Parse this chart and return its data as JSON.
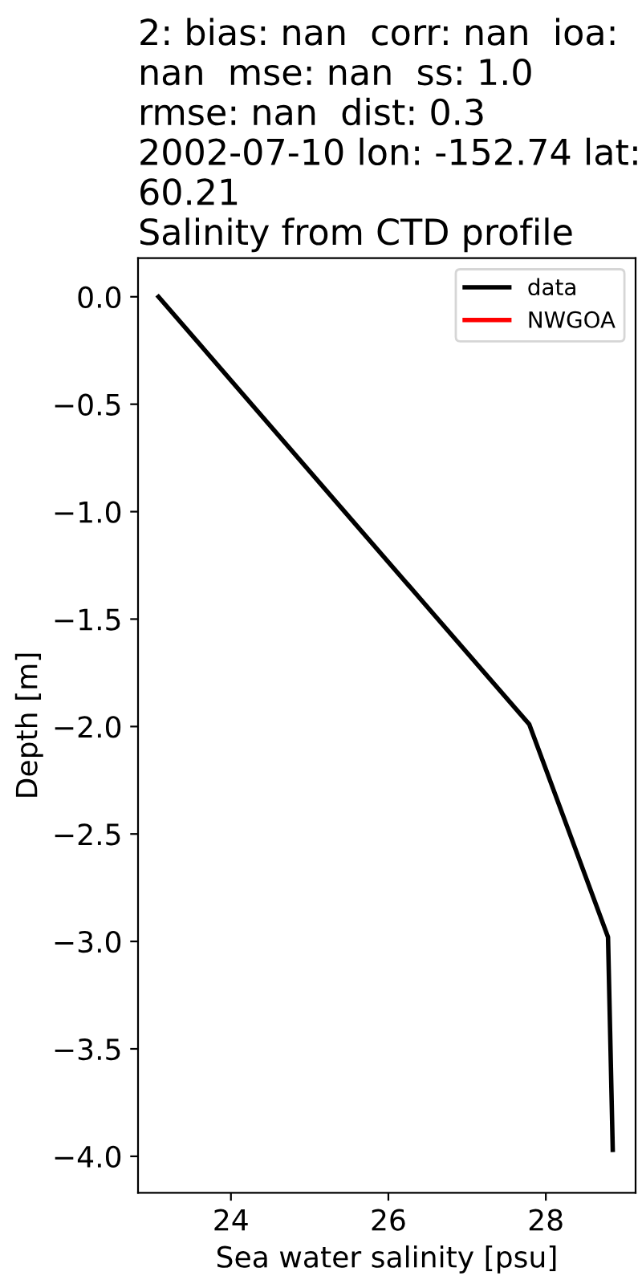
{
  "chart_data": {
    "type": "line",
    "title": "2: bias: nan  corr: nan  ioa:\nnan  mse: nan  ss: 1.0\nrmse: nan  dist: 0.3\n2002-07-10 lon: -152.74 lat:\n60.21\nSalinity from CTD profile",
    "xlabel": "Sea water salinity [psu]",
    "ylabel": "Depth [m]",
    "series": [
      {
        "name": "data",
        "color": "#000000",
        "x": [
          23.08,
          25.42,
          27.79,
          28.79,
          28.85
        ],
        "values": [
          0.0,
          -0.99,
          -1.99,
          -2.98,
          -3.97
        ]
      },
      {
        "name": "NWGOA",
        "color": "#ff0000"
      }
    ],
    "xlim": [
      22.82,
      29.14
    ],
    "xticks": [
      24,
      26,
      28
    ],
    "ylim": [
      -4.17,
      0.18
    ],
    "yticks": [
      {
        "value": 0,
        "label": "0.0"
      },
      {
        "value": -0.5,
        "label": "−0.5"
      },
      {
        "value": -1,
        "label": "−1.0"
      },
      {
        "value": -1.5,
        "label": "−1.5"
      },
      {
        "value": -2,
        "label": "−2.0"
      },
      {
        "value": -2.5,
        "label": "−2.5"
      },
      {
        "value": -3,
        "label": "−3.0"
      },
      {
        "value": -3.5,
        "label": "−3.5"
      },
      {
        "value": -4,
        "label": "−4.0"
      }
    ],
    "legend": "top right",
    "marker": "none",
    "line_style": "solid"
  }
}
